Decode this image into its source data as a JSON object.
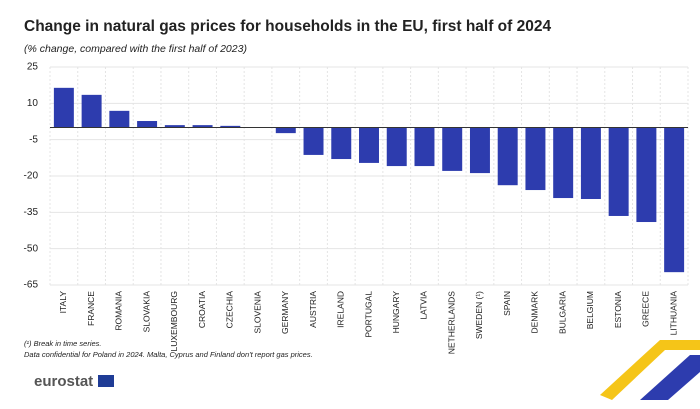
{
  "chart_data": {
    "type": "bar",
    "title": "Change in natural gas prices for households in the EU, first half of 2024",
    "subtitle": "(% change, compared with the first half of 2023)",
    "categories": [
      "ITALY",
      "FRANCE",
      "ROMANIA",
      "SLOVAKIA",
      "LUXEMBOURG",
      "CROATIA",
      "CZECHIA",
      "SLOVENIA",
      "GERMANY",
      "AUSTRIA",
      "IRELAND",
      "PORTUGAL",
      "HUNGARY",
      "LATVIA",
      "NETHERLANDS",
      "SWEDEN (¹)",
      "SPAIN",
      "DENMARK",
      "BULGARIA",
      "BELGIUM",
      "ESTONIA",
      "GREECE",
      "LITHUANIA"
    ],
    "values": [
      16.4,
      13.5,
      6.9,
      2.7,
      1.0,
      1.0,
      0.7,
      0.1,
      -2.3,
      -11.3,
      -13.0,
      -14.6,
      -15.9,
      -15.9,
      -17.9,
      -18.8,
      -23.8,
      -25.8,
      -29.1,
      -29.5,
      -36.5,
      -39.0,
      -59.7
    ],
    "color": "#2d3cae",
    "ylim": [
      -65,
      25
    ],
    "yticks": [
      25,
      10,
      -5,
      -20,
      -35,
      -50,
      -65
    ],
    "grid": true,
    "footnotes": [
      "(¹) Break in time series.",
      "Data confidential for Poland in 2024. Malta, Cyprus and Finland don't report gas prices."
    ],
    "logo": "eurostat"
  }
}
